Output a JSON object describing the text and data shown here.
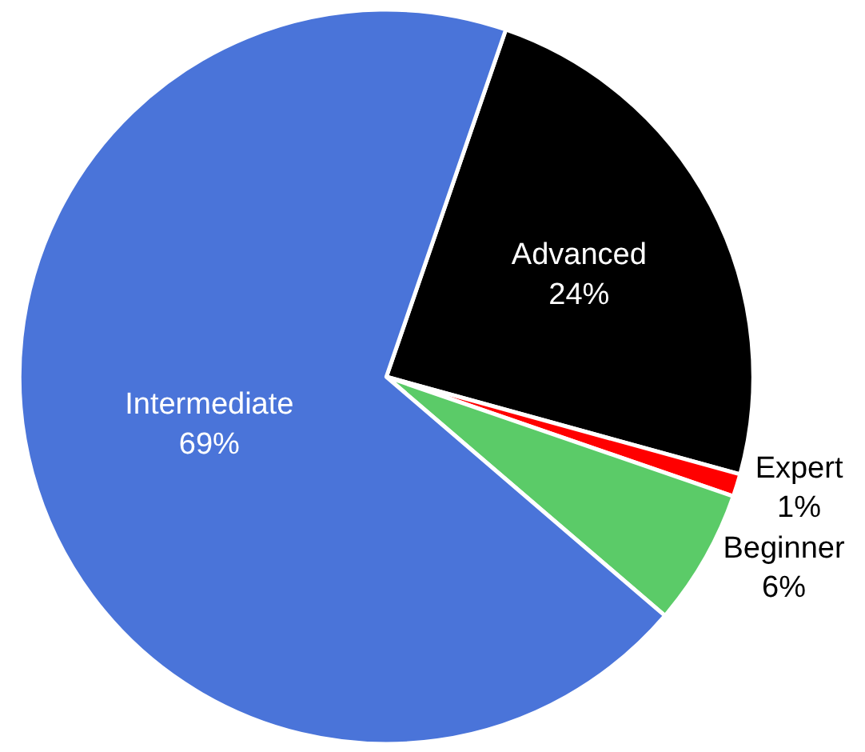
{
  "chart_data": {
    "type": "pie",
    "categories": [
      "Advanced",
      "Expert",
      "Beginner",
      "Intermediate"
    ],
    "values": [
      24,
      1,
      6,
      69
    ],
    "colors": [
      "#000000",
      "#ff0000",
      "#5bcb68",
      "#4a74d9"
    ],
    "value_labels": [
      "24%",
      "1%",
      "6%",
      "69%"
    ],
    "legend": false
  }
}
